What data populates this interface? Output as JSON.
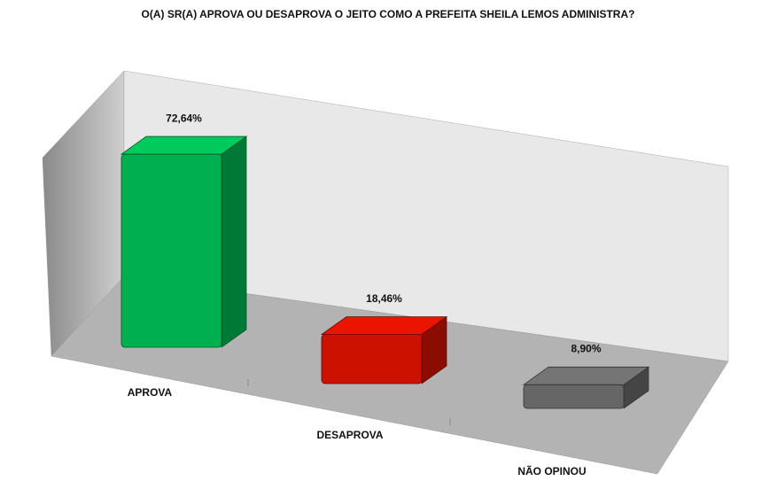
{
  "chart_data": {
    "type": "bar3d",
    "title": "O(A) SR(A) APROVA OU DESAPROVA O JEITO COMO A PREFEITA SHEILA LEMOS ADMINISTRA?",
    "categories": [
      "APROVA",
      "DESAPROVA",
      "NÃO OPINOU"
    ],
    "values": [
      72.64,
      18.46,
      8.9
    ],
    "value_labels": [
      "72,64%",
      "18,46%",
      "8,90%"
    ],
    "colors": [
      "#00b050",
      "#cc1100",
      "#666666"
    ]
  }
}
